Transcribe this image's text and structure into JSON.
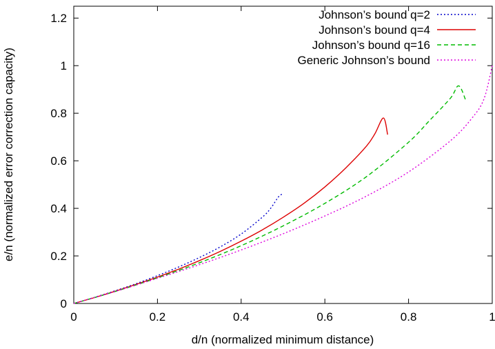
{
  "chart_data": {
    "type": "line",
    "xlabel": "d/n (normalized minimum distance)",
    "ylabel": "e/n (normalized error correction capacity)",
    "xlim": [
      0,
      1
    ],
    "ylim": [
      0,
      1.25
    ],
    "x_ticks": [
      "0",
      "0.2",
      "0.4",
      "0.6",
      "0.8",
      "1"
    ],
    "y_ticks": [
      "0",
      "0.2",
      "0.4",
      "0.6",
      "0.8",
      "1",
      "1.2"
    ],
    "grid": false,
    "legend_position": "top-right",
    "series": [
      {
        "name": "Johnson’s bound q=2",
        "color": "#0000cc",
        "style": "dotted",
        "x": [
          0,
          0.05,
          0.1,
          0.15,
          0.2,
          0.25,
          0.3,
          0.35,
          0.4,
          0.45,
          0.47,
          0.49,
          0.5
        ],
        "y": [
          0,
          0.026,
          0.054,
          0.084,
          0.117,
          0.153,
          0.193,
          0.238,
          0.292,
          0.362,
          0.399,
          0.45,
          0.46
        ]
      },
      {
        "name": "Johnson’s bound q=4",
        "color": "#dd0000",
        "style": "solid",
        "x": [
          0,
          0.05,
          0.1,
          0.15,
          0.2,
          0.25,
          0.3,
          0.35,
          0.4,
          0.45,
          0.5,
          0.55,
          0.6,
          0.65,
          0.7,
          0.72,
          0.74,
          0.75
        ],
        "y": [
          0,
          0.025,
          0.052,
          0.081,
          0.111,
          0.144,
          0.18,
          0.219,
          0.262,
          0.309,
          0.362,
          0.421,
          0.49,
          0.57,
          0.663,
          0.715,
          0.78,
          0.71
        ]
      },
      {
        "name": "Johnson’s bound q=16",
        "color": "#00bb00",
        "style": "dashed",
        "x": [
          0,
          0.1,
          0.2,
          0.3,
          0.4,
          0.5,
          0.6,
          0.7,
          0.8,
          0.85,
          0.9,
          0.92,
          0.9375
        ],
        "y": [
          0,
          0.051,
          0.108,
          0.171,
          0.243,
          0.326,
          0.421,
          0.534,
          0.678,
          0.769,
          0.863,
          0.915,
          0.85
        ]
      },
      {
        "name": "Generic Johnson’s bound",
        "color": "#dd00dd",
        "style": "dotted",
        "x": [
          0,
          0.1,
          0.2,
          0.3,
          0.4,
          0.5,
          0.6,
          0.7,
          0.8,
          0.9,
          0.95,
          0.98,
          1.0
        ],
        "y": [
          0,
          0.051,
          0.106,
          0.163,
          0.225,
          0.293,
          0.368,
          0.452,
          0.553,
          0.684,
          0.776,
          0.859,
          1.0
        ]
      }
    ]
  }
}
